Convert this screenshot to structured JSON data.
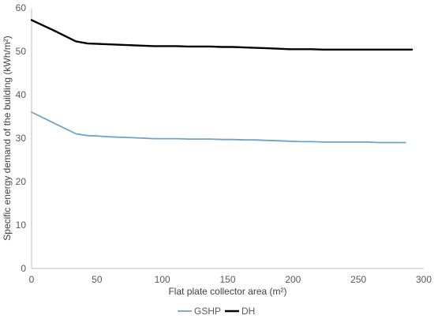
{
  "chart_data": {
    "type": "line",
    "title": "",
    "xlabel": "Flat plate collector area (m²)",
    "ylabel": "Specific energy demand of the building  (kWh/m²)",
    "xlim": [
      0,
      300
    ],
    "ylim": [
      0,
      60
    ],
    "x_ticks": [
      "0",
      "50",
      "100",
      "150",
      "200",
      "250",
      "300"
    ],
    "y_ticks": [
      "0",
      "10",
      "20",
      "30",
      "40",
      "50",
      "60"
    ],
    "grid": false,
    "legend_position": "bottom",
    "series": [
      {
        "name": "GSHP",
        "color": "#6fa1c9",
        "x": [
          0,
          17,
          34,
          43,
          51,
          60,
          69,
          77,
          86,
          94,
          103,
          111,
          120,
          129,
          137,
          146,
          154,
          163,
          171,
          180,
          189,
          197,
          206,
          214,
          223,
          231,
          240,
          249,
          257,
          266,
          274,
          283,
          286
        ],
        "y": [
          36.0,
          33.5,
          31.0,
          30.6,
          30.5,
          30.3,
          30.2,
          30.1,
          30.0,
          29.9,
          29.9,
          29.9,
          29.8,
          29.8,
          29.8,
          29.7,
          29.7,
          29.6,
          29.6,
          29.5,
          29.4,
          29.3,
          29.2,
          29.2,
          29.1,
          29.1,
          29.1,
          29.1,
          29.1,
          29.0,
          29.0,
          29.0,
          29.0
        ]
      },
      {
        "name": "DH",
        "color": "#000000",
        "x": [
          0,
          17,
          34,
          43,
          51,
          60,
          69,
          77,
          86,
          94,
          103,
          111,
          120,
          129,
          137,
          146,
          154,
          163,
          171,
          180,
          189,
          197,
          206,
          214,
          223,
          231,
          240,
          249,
          257,
          266,
          274,
          283,
          291
        ],
        "y": [
          57.2,
          54.8,
          52.3,
          51.8,
          51.7,
          51.6,
          51.5,
          51.4,
          51.3,
          51.2,
          51.2,
          51.2,
          51.1,
          51.1,
          51.1,
          51.0,
          51.0,
          50.9,
          50.8,
          50.7,
          50.6,
          50.5,
          50.5,
          50.5,
          50.4,
          50.4,
          50.4,
          50.4,
          50.4,
          50.4,
          50.4,
          50.4,
          50.4
        ]
      }
    ]
  }
}
